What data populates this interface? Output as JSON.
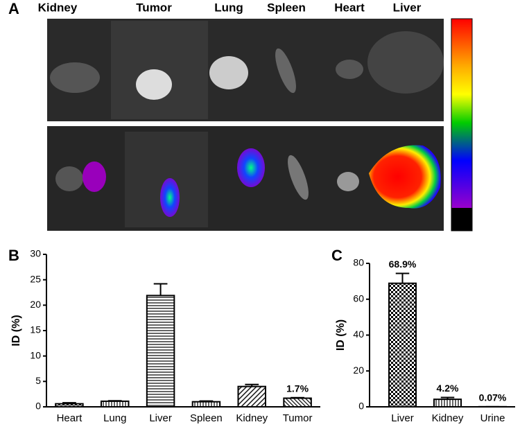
{
  "panel_a": {
    "label": "A",
    "organs": [
      "Kidney",
      "Tumor",
      "Lung",
      "Spleen",
      "Heart",
      "Liver"
    ]
  },
  "chart_data": [
    {
      "type": "bar",
      "panel": "B",
      "ylabel": "ID (%)",
      "categories": [
        "Heart",
        "Lung",
        "Liver",
        "Spleen",
        "Kidney",
        "Tumor"
      ],
      "values": [
        0.6,
        1.1,
        21.9,
        1.0,
        4.0,
        1.7
      ],
      "errors": [
        0.2,
        0.1,
        2.3,
        0.15,
        0.4,
        0.1
      ],
      "value_labels": [
        null,
        null,
        null,
        null,
        null,
        "1.7%"
      ],
      "ylim": [
        0,
        30
      ],
      "yticks": [
        0,
        5,
        10,
        15,
        20,
        25,
        30
      ],
      "grid": false,
      "color": "#000000"
    },
    {
      "type": "bar",
      "panel": "C",
      "ylabel": "ID (%)",
      "categories": [
        "Liver",
        "Kidney",
        "Urine"
      ],
      "values": [
        68.9,
        4.2,
        0.07
      ],
      "errors": [
        5.5,
        1.0,
        0
      ],
      "value_labels": [
        "68.9%",
        "4.2%",
        "0.07%"
      ],
      "ylim": [
        0,
        80
      ],
      "yticks": [
        0,
        20,
        40,
        60,
        80
      ],
      "grid": false,
      "color": "#000000"
    }
  ]
}
